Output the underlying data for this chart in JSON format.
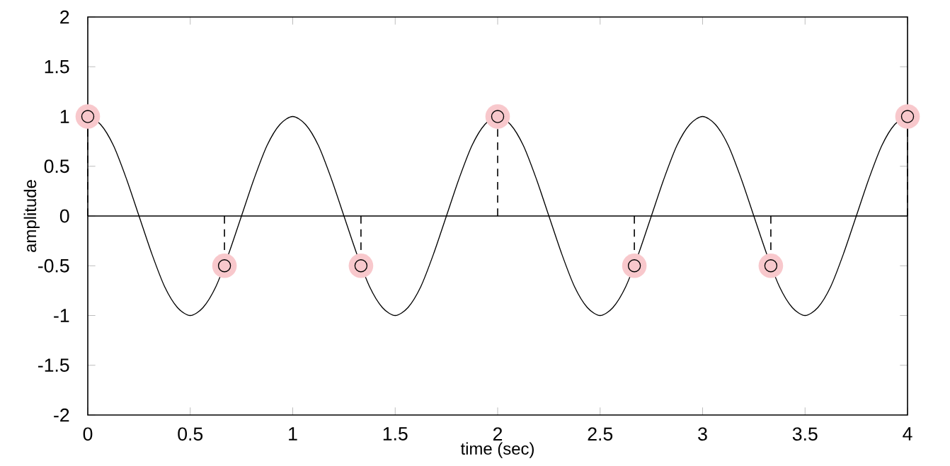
{
  "chart_data": {
    "type": "line",
    "xlabel": "time (sec)",
    "ylabel": "amplitude",
    "xlim": [
      0,
      4
    ],
    "ylim": [
      -2,
      2
    ],
    "xticks": [
      0,
      0.5,
      1,
      1.5,
      2,
      2.5,
      3,
      3.5,
      4
    ],
    "yticks": [
      -2,
      -1.5,
      -1,
      -0.5,
      0,
      0.5,
      1,
      1.5,
      2
    ],
    "grid": false,
    "ref_lines": [
      {
        "axis": "y",
        "value": 0,
        "color": "#000000"
      }
    ],
    "series": [
      {
        "color": "#000000",
        "marker": "none",
        "line_style": "solid",
        "x": [
          0,
          0.0625,
          0.125,
          0.1875,
          0.25,
          0.3125,
          0.375,
          0.4375,
          0.5,
          0.5625,
          0.625,
          0.6875,
          0.75,
          0.8125,
          0.875,
          0.9375,
          1,
          1.0625,
          1.125,
          1.1875,
          1.25,
          1.3125,
          1.375,
          1.4375,
          1.5,
          1.5625,
          1.625,
          1.6875,
          1.75,
          1.8125,
          1.875,
          1.9375,
          2,
          2.0625,
          2.125,
          2.1875,
          2.25,
          2.3125,
          2.375,
          2.4375,
          2.5,
          2.5625,
          2.625,
          2.6875,
          2.75,
          2.8125,
          2.875,
          2.9375,
          3,
          3.0625,
          3.125,
          3.1875,
          3.25,
          3.3125,
          3.375,
          3.4375,
          3.5,
          3.5625,
          3.625,
          3.6875,
          3.75,
          3.8125,
          3.875,
          3.9375,
          4
        ],
        "values": [
          1,
          0.92,
          0.71,
          0.38,
          0,
          -0.38,
          -0.71,
          -0.92,
          -1,
          -0.92,
          -0.71,
          -0.38,
          0,
          0.38,
          0.71,
          0.92,
          1,
          0.92,
          0.71,
          0.38,
          0,
          -0.38,
          -0.71,
          -0.92,
          -1,
          -0.92,
          -0.71,
          -0.38,
          0,
          0.38,
          0.71,
          0.92,
          1,
          0.92,
          0.71,
          0.38,
          0,
          -0.38,
          -0.71,
          -0.92,
          -1,
          -0.92,
          -0.71,
          -0.38,
          0,
          0.38,
          0.71,
          0.92,
          1,
          0.92,
          0.71,
          0.38,
          0,
          -0.38,
          -0.71,
          -0.92,
          -1,
          -0.92,
          -0.71,
          -0.38,
          0,
          0.38,
          0.71,
          0.92,
          1
        ]
      },
      {
        "type": "lollipop",
        "color": "#000000",
        "marker": "circle",
        "line_style": "dashed",
        "x": [
          0,
          0.667,
          1.333,
          2,
          2.667,
          3.333,
          4
        ],
        "values": [
          1,
          -0.5,
          -0.5,
          1,
          -0.5,
          -0.5,
          1
        ]
      }
    ]
  }
}
